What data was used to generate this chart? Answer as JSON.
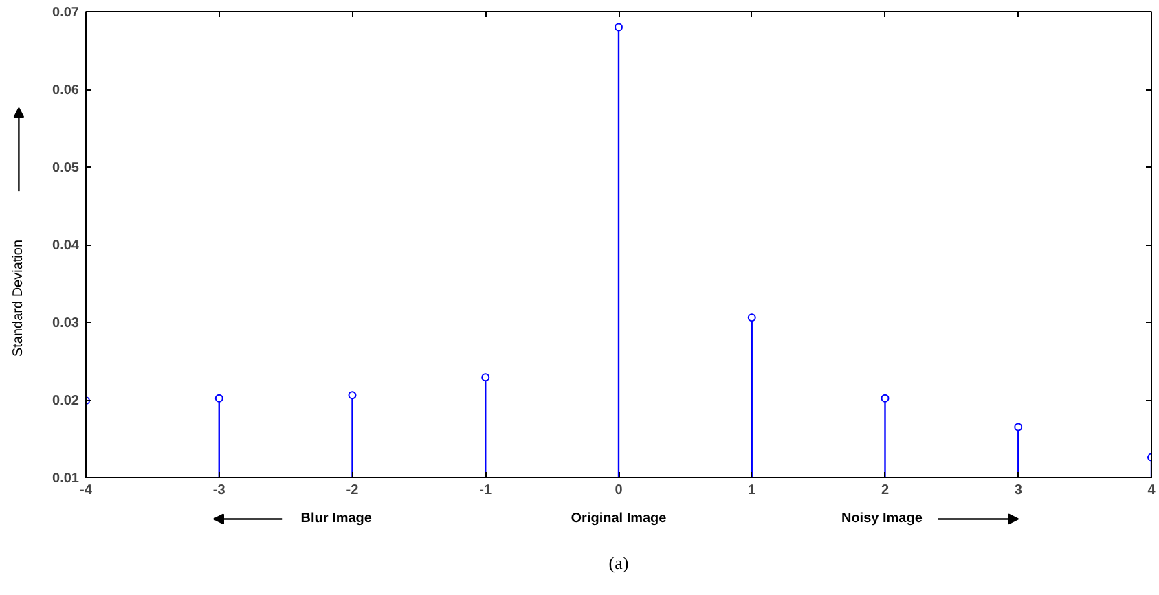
{
  "chart_data": {
    "type": "lollipop",
    "ylabel": "Standard Deviation",
    "x": [
      -4,
      -3,
      -2,
      -1,
      0,
      1,
      2,
      3,
      4
    ],
    "series": [
      {
        "color": "#0000ff",
        "values": [
          0.0199,
          0.0202,
          0.0206,
          0.0229,
          0.068,
          0.0306,
          0.0202,
          0.0165,
          0.0126
        ]
      }
    ],
    "xlim": [
      -4,
      4
    ],
    "ylim": [
      0.01,
      0.07
    ],
    "xticks": [
      -4,
      -3,
      -2,
      -1,
      0,
      1,
      2,
      3,
      4
    ],
    "yticks": [
      0.01,
      0.02,
      0.03,
      0.04,
      0.05,
      0.06,
      0.07
    ],
    "marker": "circle",
    "grid": false,
    "annotations": [
      "Blur Image",
      "Original Image",
      "Noisy Image",
      "(a)"
    ]
  }
}
